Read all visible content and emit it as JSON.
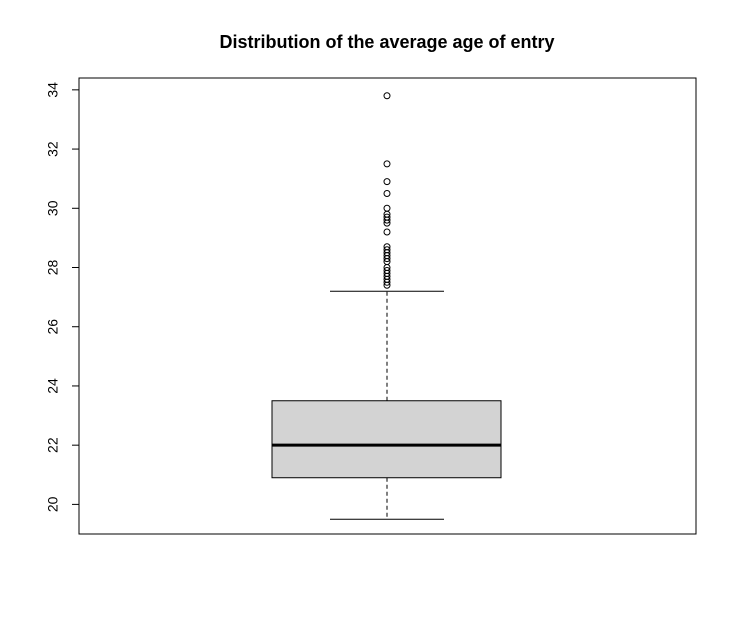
{
  "chart_data": {
    "type": "boxplot",
    "title": "Distribution of the average age of entry",
    "xlabel": "",
    "ylabel": "",
    "ylim": [
      19.0,
      34.4
    ],
    "y_ticks": [
      20,
      22,
      24,
      26,
      28,
      30,
      32,
      34
    ],
    "y_tick_labels": [
      "20",
      "22",
      "24",
      "26",
      "28",
      "30",
      "32",
      "34"
    ],
    "grid": false,
    "legend": "none",
    "box": {
      "min_whisker": 19.5,
      "q1": 20.9,
      "median": 22.0,
      "q3": 23.5,
      "max_whisker": 27.2
    },
    "outliers": [
      27.4,
      27.5,
      27.6,
      27.7,
      27.8,
      27.9,
      28.0,
      28.2,
      28.3,
      28.4,
      28.5,
      28.6,
      28.7,
      29.2,
      29.5,
      29.6,
      29.7,
      29.8,
      30.0,
      30.5,
      30.9,
      31.5,
      33.8
    ],
    "colors": {
      "box_fill": "#d3d3d3",
      "line": "#000000",
      "background": "#ffffff"
    }
  }
}
